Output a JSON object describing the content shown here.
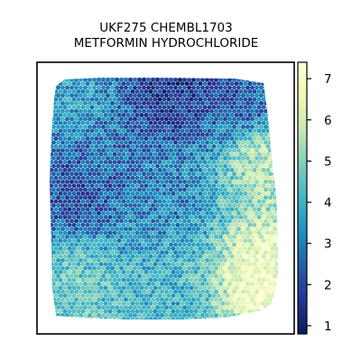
{
  "chart_data": {
    "type": "heatmap",
    "subtype": "spatial hexagonal spot map",
    "title_lines": [
      "UKF275 CHEMBL1703",
      "METFORMIN HYDROCHLORIDE"
    ],
    "xlabel": "",
    "ylabel": "",
    "axis_ticks_visible": false,
    "grid": false,
    "legend": "colorbar-right",
    "colormap": "YlGnBu_r",
    "colormap_stops": [
      "#081d58",
      "#253494",
      "#225ea8",
      "#1d91c0",
      "#41b6c4",
      "#7fcdbb",
      "#c7e9b4",
      "#edf8b1",
      "#ffffd9"
    ],
    "value_range": [
      0.8,
      7.4
    ],
    "colorbar_ticks": [
      1,
      2,
      3,
      4,
      5,
      6,
      7
    ],
    "regional_values": [
      {
        "region": "top-left",
        "value": 3.5
      },
      {
        "region": "top-center",
        "value": 1.6
      },
      {
        "region": "top-right",
        "value": 2.3
      },
      {
        "region": "center-left",
        "value": 2.1
      },
      {
        "region": "center",
        "value": 3.0
      },
      {
        "region": "right-edge-middle",
        "value": 5.6
      },
      {
        "region": "bottom-left",
        "value": 4.6
      },
      {
        "region": "bottom-center",
        "value": 4.0
      },
      {
        "region": "bottom-right",
        "value": 6.8
      }
    ]
  }
}
